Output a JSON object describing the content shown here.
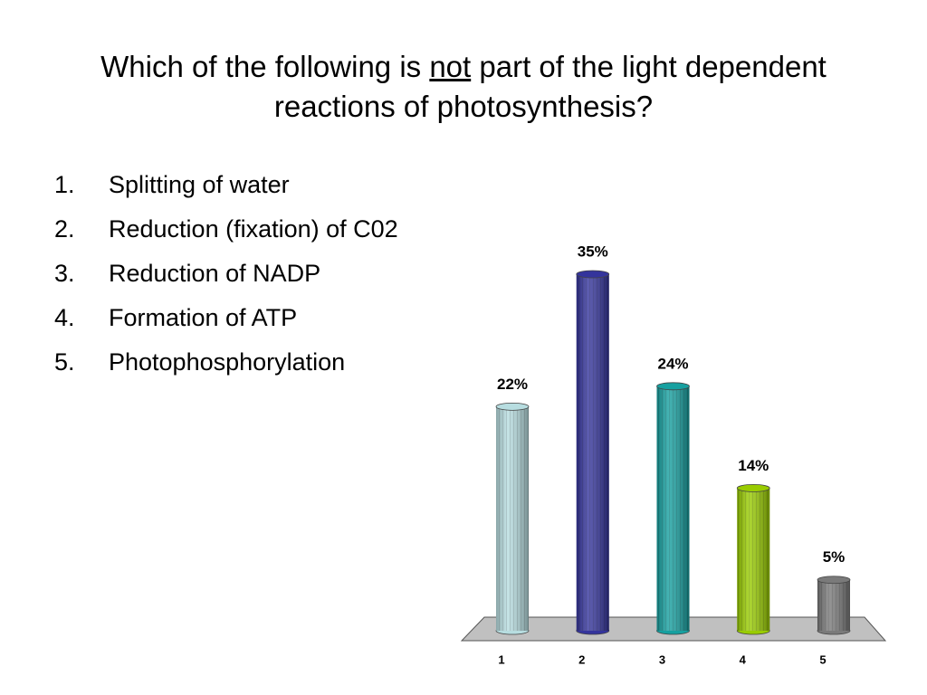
{
  "title": {
    "before": "Which of the following is",
    "underlined": "not",
    "after": "part of the light dependent reactions of photosynthesis?"
  },
  "options": [
    {
      "number": "1.",
      "text": "Splitting of water"
    },
    {
      "number": "2.",
      "text": "Reduction (fixation) of C02"
    },
    {
      "number": "3.",
      "text": "Reduction of NADP"
    },
    {
      "number": "4.",
      "text": "Formation of ATP"
    },
    {
      "number": "5.",
      "text": "Photophosphorylation"
    }
  ],
  "chart_data": {
    "type": "bar",
    "categories": [
      "1",
      "2",
      "3",
      "4",
      "5"
    ],
    "values": [
      22,
      35,
      24,
      14,
      5
    ],
    "value_labels": [
      "22%",
      "35%",
      "24%",
      "14%",
      "5%"
    ],
    "colors": [
      "#b7dde0",
      "#34349c",
      "#16a0a0",
      "#99cc00",
      "#7a7a7a"
    ]
  }
}
